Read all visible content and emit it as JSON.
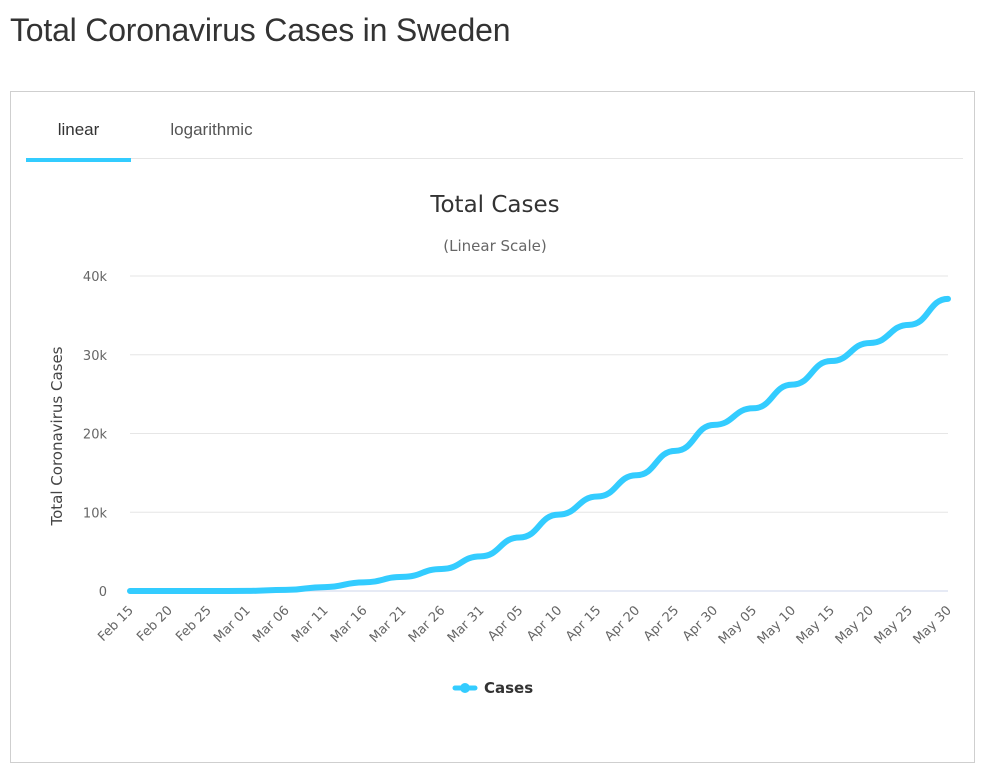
{
  "page": {
    "title": "Total Coronavirus Cases in Sweden"
  },
  "tabs": [
    {
      "label": "linear",
      "active": true
    },
    {
      "label": "logarithmic",
      "active": false
    }
  ],
  "colors": {
    "series": "#33ccff",
    "tab_active": "#33ccff",
    "grid": "#e6e6e6"
  },
  "chart_data": {
    "type": "line",
    "title": "Total Cases",
    "subtitle": "(Linear Scale)",
    "xlabel": "",
    "ylabel": "Total Coronavirus Cases",
    "ylim": [
      0,
      40000
    ],
    "y_ticks": [
      0,
      10000,
      20000,
      30000,
      40000
    ],
    "y_tick_labels": [
      "0",
      "10k",
      "20k",
      "30k",
      "40k"
    ],
    "x_tick_labels": [
      "Feb 15",
      "Feb 20",
      "Feb 25",
      "Mar 01",
      "Mar 06",
      "Mar 11",
      "Mar 16",
      "Mar 21",
      "Mar 26",
      "Mar 31",
      "Apr 05",
      "Apr 10",
      "Apr 15",
      "Apr 20",
      "Apr 25",
      "Apr 30",
      "May 05",
      "May 10",
      "May 15",
      "May 20",
      "May 25",
      "May 30"
    ],
    "grid": true,
    "legend": "bottom-center",
    "series": [
      {
        "name": "Cases",
        "color": "#33ccff",
        "points": [
          [
            "Feb 15",
            1
          ],
          [
            "Feb 20",
            1
          ],
          [
            "Feb 25",
            1
          ],
          [
            "Mar 01",
            14
          ],
          [
            "Mar 06",
            137
          ],
          [
            "Mar 11",
            500
          ],
          [
            "Mar 16",
            1100
          ],
          [
            "Mar 21",
            1800
          ],
          [
            "Mar 26",
            2800
          ],
          [
            "Mar 31",
            4400
          ],
          [
            "Apr 05",
            6800
          ],
          [
            "Apr 10",
            9700
          ],
          [
            "Apr 15",
            12000
          ],
          [
            "Apr 20",
            14700
          ],
          [
            "Apr 25",
            17800
          ],
          [
            "Apr 30",
            21100
          ],
          [
            "May 05",
            23200
          ],
          [
            "May 10",
            26200
          ],
          [
            "May 15",
            29200
          ],
          [
            "May 20",
            31500
          ],
          [
            "May 25",
            33800
          ],
          [
            "May 30",
            37100
          ]
        ]
      }
    ]
  }
}
